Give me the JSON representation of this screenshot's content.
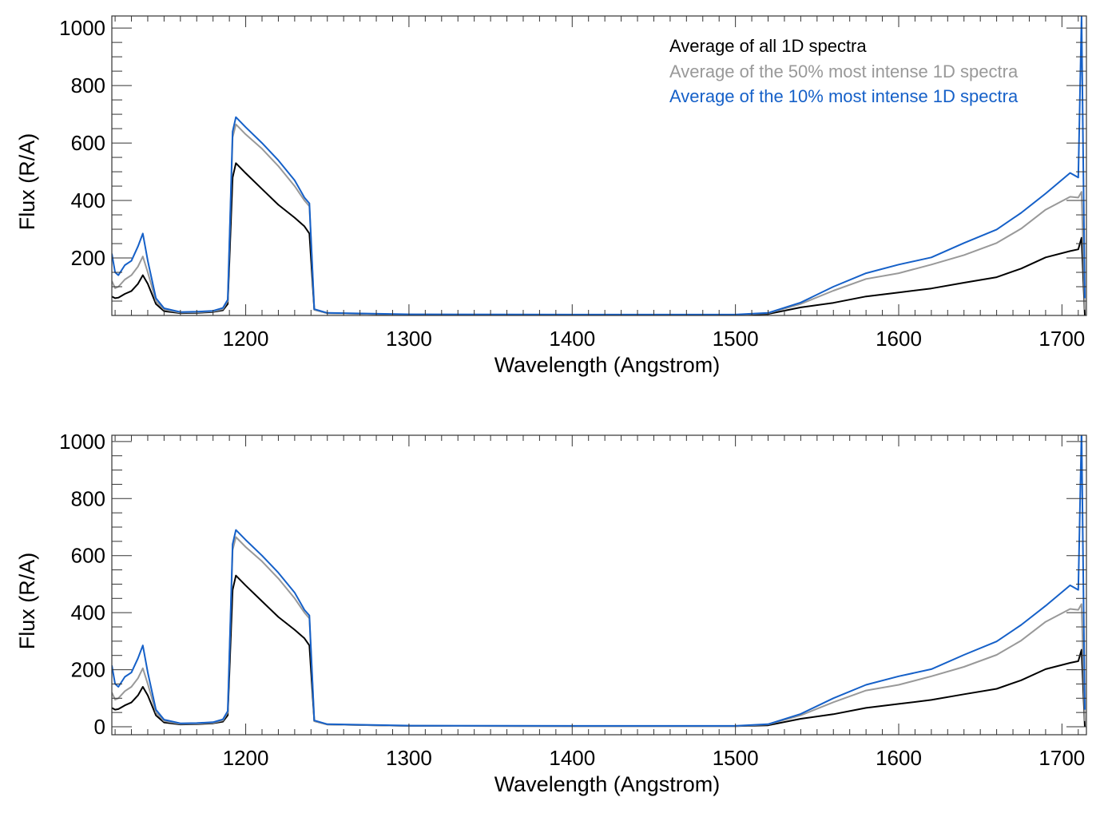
{
  "colors": {
    "all": "#000000",
    "p50": "#999999",
    "p10": "#1560c8",
    "axis": "#333333"
  },
  "legend": [
    {
      "label": "Average of all 1D spectra",
      "series": "all"
    },
    {
      "label": "Average of the 50% most intense 1D spectra",
      "series": "p50"
    },
    {
      "label": "Average of the 10% most intense 1D spectra",
      "series": "p10"
    }
  ],
  "chart_data": [
    {
      "type": "line",
      "xlabel": "Wavelength (Angstrom)",
      "ylabel": "Flux (R/A)",
      "xlim": [
        1118,
        1715
      ],
      "ylim": [
        0,
        1042
      ],
      "xticks": [
        1200,
        1300,
        1400,
        1500,
        1600,
        1700
      ],
      "yticks": [
        200,
        400,
        600,
        800,
        1000
      ],
      "legend_position": "top-right",
      "show_legend": true
    },
    {
      "type": "line",
      "xlabel": "Wavelength (Angstrom)",
      "ylabel": "Flux (R/A)",
      "xlim": [
        1118,
        1715
      ],
      "ylim": [
        -28,
        1022
      ],
      "xticks": [
        1200,
        1300,
        1400,
        1500,
        1600,
        1700
      ],
      "yticks": [
        0,
        200,
        400,
        600,
        800,
        1000
      ],
      "legend_position": "none",
      "show_legend": false
    }
  ],
  "series": {
    "x": [
      1118,
      1120,
      1122,
      1126,
      1130,
      1134,
      1137,
      1140,
      1145,
      1150,
      1160,
      1170,
      1180,
      1186,
      1189,
      1192,
      1194,
      1200,
      1210,
      1220,
      1230,
      1236,
      1239,
      1242,
      1250,
      1300,
      1400,
      1500,
      1520,
      1540,
      1560,
      1580,
      1600,
      1620,
      1640,
      1660,
      1675,
      1690,
      1705,
      1710,
      1712,
      1714
    ],
    "all": [
      66,
      60,
      62,
      75,
      85,
      110,
      140,
      110,
      40,
      15,
      8,
      9,
      12,
      18,
      40,
      480,
      530,
      495,
      440,
      385,
      340,
      310,
      285,
      20,
      8,
      3,
      2,
      2,
      5,
      28,
      44,
      66,
      80,
      94,
      114,
      133,
      163,
      202,
      224,
      230,
      270,
      0
    ],
    "p50": [
      120,
      95,
      100,
      125,
      140,
      170,
      205,
      150,
      50,
      20,
      10,
      11,
      14,
      22,
      50,
      620,
      665,
      630,
      580,
      520,
      450,
      400,
      380,
      20,
      8,
      3,
      2,
      2,
      8,
      40,
      86,
      127,
      147,
      177,
      210,
      252,
      302,
      368,
      413,
      410,
      430,
      20
    ],
    "p10": [
      215,
      150,
      140,
      175,
      190,
      240,
      285,
      190,
      60,
      25,
      12,
      13,
      16,
      26,
      55,
      640,
      690,
      655,
      600,
      540,
      470,
      410,
      390,
      22,
      9,
      4,
      3,
      3,
      9,
      45,
      100,
      147,
      177,
      202,
      252,
      299,
      357,
      424,
      496,
      480,
      1040,
      60
    ]
  }
}
